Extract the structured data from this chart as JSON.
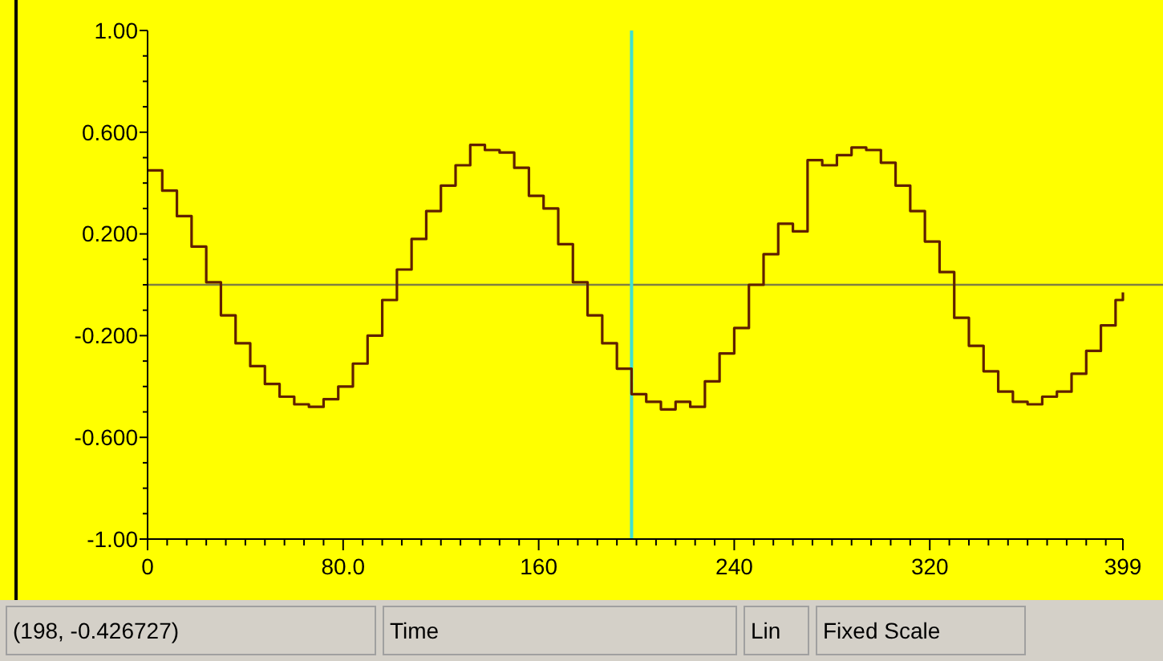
{
  "chart_data": {
    "type": "step",
    "color": "#602000",
    "x": [
      0,
      6,
      12,
      18,
      24,
      30,
      36,
      42,
      48,
      54,
      60,
      66,
      72,
      78,
      84,
      90,
      96,
      102,
      108,
      114,
      120,
      126,
      132,
      138,
      144,
      150,
      156,
      162,
      168,
      174,
      180,
      186,
      192,
      198,
      204,
      210,
      216,
      222,
      228,
      234,
      240,
      246,
      252,
      258,
      264,
      270,
      276,
      282,
      288,
      294,
      300,
      306,
      312,
      318,
      324,
      330,
      336,
      342,
      348,
      354,
      360,
      366,
      372,
      378,
      384,
      390,
      396,
      399
    ],
    "values": [
      0.45,
      0.37,
      0.27,
      0.15,
      0.01,
      -0.12,
      -0.23,
      -0.32,
      -0.39,
      -0.44,
      -0.47,
      -0.48,
      -0.45,
      -0.4,
      -0.31,
      -0.2,
      -0.06,
      0.06,
      0.18,
      0.29,
      0.39,
      0.47,
      0.55,
      0.53,
      0.52,
      0.46,
      0.35,
      0.3,
      0.16,
      0.01,
      -0.12,
      -0.23,
      -0.33,
      -0.43,
      -0.46,
      -0.49,
      -0.46,
      -0.48,
      -0.38,
      -0.27,
      -0.17,
      0.0,
      0.12,
      0.24,
      0.21,
      0.49,
      0.47,
      0.51,
      0.54,
      0.53,
      0.48,
      0.39,
      0.29,
      0.17,
      0.05,
      -0.13,
      -0.24,
      -0.34,
      -0.42,
      -0.46,
      -0.47,
      -0.44,
      -0.42,
      -0.35,
      -0.26,
      -0.16,
      -0.06,
      -0.03
    ],
    "xlim": [
      0,
      399
    ],
    "xticks": [
      0,
      {
        "value": 8,
        "label": null
      },
      {
        "value": 16,
        "label": null
      },
      {
        "value": 24,
        "label": null
      },
      {
        "value": 32,
        "label": null
      },
      {
        "value": 40,
        "label": null
      },
      {
        "value": 48,
        "label": null
      },
      {
        "value": 56,
        "label": null
      },
      {
        "value": 64,
        "label": null
      },
      {
        "value": 72,
        "label": null
      },
      {
        "value": 80,
        "label": "80.0"
      },
      {
        "value": 88,
        "label": null
      },
      {
        "value": 96,
        "label": null
      },
      {
        "value": 104,
        "label": null
      },
      {
        "value": 112,
        "label": null
      },
      {
        "value": 120,
        "label": null
      },
      {
        "value": 128,
        "label": null
      },
      {
        "value": 136,
        "label": null
      },
      {
        "value": 144,
        "label": null
      },
      {
        "value": 152,
        "label": null
      },
      160,
      {
        "value": 168,
        "label": null
      },
      {
        "value": 176,
        "label": null
      },
      {
        "value": 184,
        "label": null
      },
      {
        "value": 192,
        "label": null
      },
      {
        "value": 200,
        "label": null
      },
      {
        "value": 208,
        "label": null
      },
      {
        "value": 216,
        "label": null
      },
      {
        "value": 224,
        "label": null
      },
      {
        "value": 232,
        "label": null
      },
      240,
      {
        "value": 248,
        "label": null
      },
      {
        "value": 256,
        "label": null
      },
      {
        "value": 264,
        "label": null
      },
      {
        "value": 272,
        "label": null
      },
      {
        "value": 280,
        "label": null
      },
      {
        "value": 288,
        "label": null
      },
      {
        "value": 296,
        "label": null
      },
      {
        "value": 304,
        "label": null
      },
      {
        "value": 312,
        "label": null
      },
      320,
      {
        "value": 328,
        "label": null
      },
      {
        "value": 336,
        "label": null
      },
      {
        "value": 344,
        "label": null
      },
      {
        "value": 352,
        "label": null
      },
      {
        "value": 360,
        "label": null
      },
      {
        "value": 368,
        "label": null
      },
      {
        "value": 376,
        "label": null
      },
      {
        "value": 384,
        "label": null
      },
      {
        "value": 392,
        "label": null
      },
      399
    ],
    "ylim": [
      -1,
      1
    ],
    "yticks": [
      {
        "value": -1,
        "label": "-1.00"
      },
      {
        "value": -0.9,
        "label": null
      },
      {
        "value": -0.8,
        "label": null
      },
      {
        "value": -0.7,
        "label": null
      },
      {
        "value": -0.6,
        "label": "-0.600"
      },
      {
        "value": -0.5,
        "label": null
      },
      {
        "value": -0.4,
        "label": null
      },
      {
        "value": -0.3,
        "label": null
      },
      {
        "value": -0.2,
        "label": "-0.200"
      },
      {
        "value": -0.1,
        "label": null
      },
      {
        "value": 0,
        "label": null
      },
      {
        "value": 0.1,
        "label": null
      },
      {
        "value": 0.2,
        "label": "0.200"
      },
      {
        "value": 0.3,
        "label": null
      },
      {
        "value": 0.4,
        "label": null
      },
      {
        "value": 0.5,
        "label": null
      },
      {
        "value": 0.6,
        "label": "0.600"
      },
      {
        "value": 0.7,
        "label": null
      },
      {
        "value": 0.8,
        "label": null
      },
      {
        "value": 0.9,
        "label": null
      },
      {
        "value": 1,
        "label": "1.00"
      }
    ],
    "ref_lines": [
      {
        "axis": "y",
        "value": 0,
        "color": "#808040"
      },
      {
        "axis": "x",
        "value": 198,
        "color": "#40e0d0"
      }
    ],
    "annotations": [
      "(198, -0.426727)",
      "Time",
      "Lin",
      "Fixed Scale"
    ]
  }
}
